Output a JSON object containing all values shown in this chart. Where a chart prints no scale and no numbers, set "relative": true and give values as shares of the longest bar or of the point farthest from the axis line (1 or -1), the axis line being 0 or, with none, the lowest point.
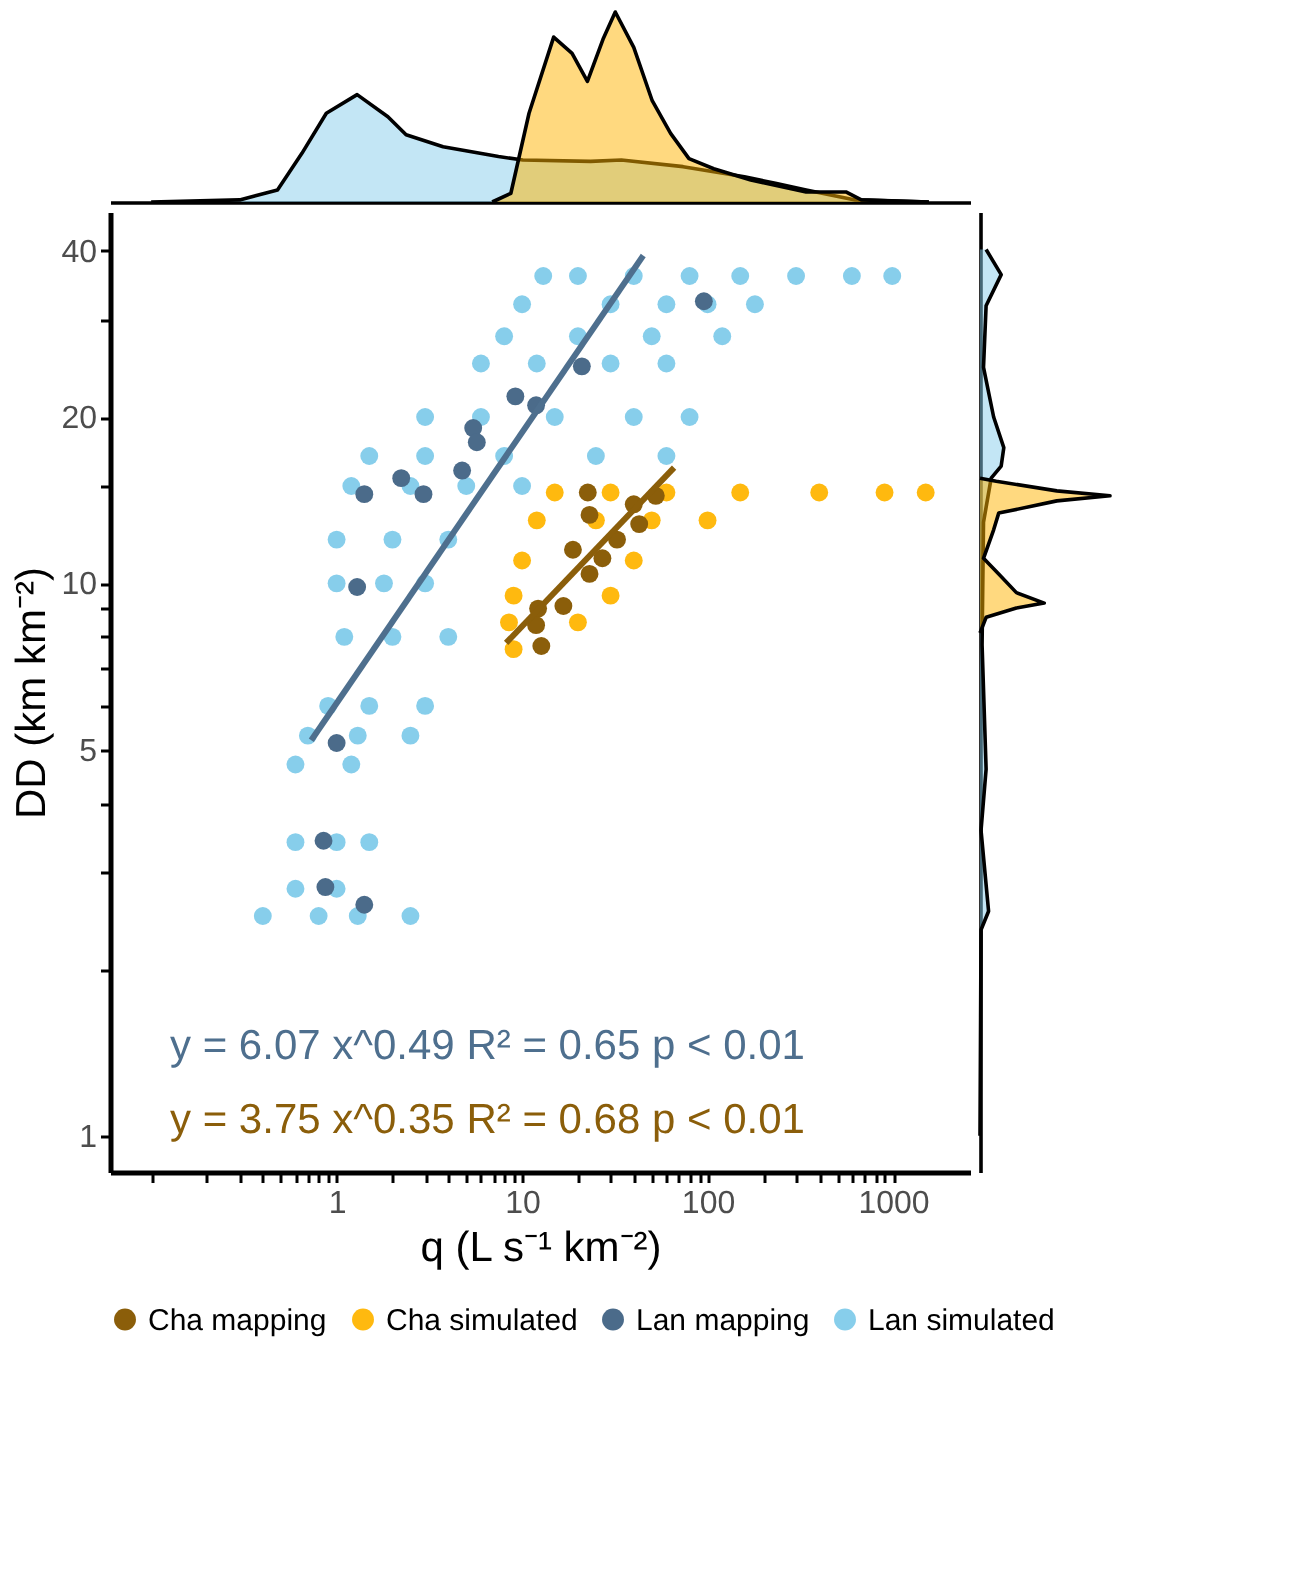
{
  "chart_data": [
    {
      "type": "area",
      "relative": true,
      "log": "x",
      "xlim": [
        0.06,
        2600
      ],
      "tick_labels": false,
      "series": [
        {
          "color": "#87ceeb",
          "x": [
            0.1,
            0.3,
            0.48,
            0.65,
            0.88,
            1.29,
            1.89,
            2.37,
            3.75,
            7.46,
            10.1,
            23.4,
            34.3,
            73.8,
            158,
            232,
            340,
            625,
            1560
          ],
          "values": [
            0,
            0.011,
            0.063,
            0.256,
            0.467,
            0.565,
            0.449,
            0.354,
            0.291,
            0.239,
            0.221,
            0.214,
            0.221,
            0.186,
            0.133,
            0.098,
            0.063,
            0.011,
            0
          ]
        },
        {
          "color": "#ffb400",
          "x": [
            6.9,
            8.7,
            10.9,
            14.8,
            18.6,
            22.5,
            27.3,
            31.8,
            40,
            50.3,
            63.2,
            79.4,
            108,
            171,
            340,
            557,
            675,
            1560
          ],
          "values": [
            0,
            0.046,
            0.467,
            0.868,
            0.782,
            0.635,
            0.856,
            1,
            0.814,
            0.533,
            0.361,
            0.228,
            0.175,
            0.116,
            0.053,
            0.053,
            0.011,
            0
          ]
        }
      ]
    },
    {
      "type": "scatter",
      "xlabel": "q (L s⁻¹ km⁻²)",
      "ylabel": "DD (km km⁻²)",
      "log": "xy",
      "xlim": [
        0.06,
        2600
      ],
      "ylim": [
        0.86,
        47
      ],
      "xticks": [
        {
          "value": 0.1,
          "label": null
        },
        {
          "value": 0.2,
          "label": null
        },
        {
          "value": 0.3,
          "label": null
        },
        {
          "value": 0.4,
          "label": null
        },
        {
          "value": 0.5,
          "label": null
        },
        {
          "value": 0.6,
          "label": null
        },
        {
          "value": 0.7,
          "label": null
        },
        {
          "value": 0.8,
          "label": null
        },
        {
          "value": 0.9,
          "label": null
        },
        1,
        {
          "value": 2,
          "label": null
        },
        {
          "value": 3,
          "label": null
        },
        {
          "value": 4,
          "label": null
        },
        {
          "value": 5,
          "label": null
        },
        {
          "value": 6,
          "label": null
        },
        {
          "value": 7,
          "label": null
        },
        {
          "value": 8,
          "label": null
        },
        {
          "value": 9,
          "label": null
        },
        10,
        {
          "value": 20,
          "label": null
        },
        {
          "value": 30,
          "label": null
        },
        {
          "value": 40,
          "label": null
        },
        {
          "value": 50,
          "label": null
        },
        {
          "value": 60,
          "label": null
        },
        {
          "value": 70,
          "label": null
        },
        {
          "value": 80,
          "label": null
        },
        {
          "value": 90,
          "label": null
        },
        100,
        {
          "value": 200,
          "label": null
        },
        {
          "value": 300,
          "label": null
        },
        {
          "value": 400,
          "label": null
        },
        {
          "value": 500,
          "label": null
        },
        {
          "value": 600,
          "label": null
        },
        {
          "value": 700,
          "label": null
        },
        {
          "value": 800,
          "label": null
        },
        {
          "value": 900,
          "label": null
        },
        1000
      ],
      "yticks": [
        1,
        {
          "value": 2,
          "label": null
        },
        {
          "value": 3,
          "label": null
        },
        {
          "value": 4,
          "label": null
        },
        5,
        {
          "value": 6,
          "label": null
        },
        {
          "value": 7,
          "label": null
        },
        {
          "value": 8,
          "label": null
        },
        {
          "value": 9,
          "label": null
        },
        10,
        {
          "value": 15,
          "label": null
        },
        20,
        {
          "value": 30,
          "label": null
        },
        40
      ],
      "legend": "bottom",
      "marker": "circle",
      "series": [
        {
          "name": "Cha mapping",
          "color": "#8b5e0a",
          "x": [
            22.6,
            52.6,
            40,
            23.1,
            42.8,
            32.5,
            18.8,
            27.1,
            23.1,
            16.7,
            12.2,
            11.9,
            12.7
          ],
          "values": [
            14.6,
            14.4,
            13.9,
            13.3,
            12.8,
            12.0,
            11.5,
            11.1,
            10.4,
            9.1,
            9.0,
            8.4,
            7.7
          ]
        },
        {
          "name": "Cha simulated",
          "color": "#ffb90f",
          "x": [
            15,
            30,
            60,
            150,
            400,
            900,
            1500,
            12,
            25,
            50,
            100,
            10,
            40,
            9,
            30,
            8.5,
            20,
            9
          ],
          "values": [
            14.6,
            14.6,
            14.6,
            14.6,
            14.6,
            14.6,
            14.6,
            13,
            13,
            13,
            13,
            11,
            11,
            9.5,
            9.5,
            8.5,
            8.5,
            7.6
          ]
        },
        {
          "name": "Lan mapping",
          "color": "#4b6b8a",
          "x": [
            95.5,
            21,
            9.2,
            11.9,
            5.45,
            5.7,
            4.75,
            2.23,
            1.41,
            2.94,
            1.29,
            1.0,
            0.85,
            0.87,
            1.41
          ],
          "values": [
            32.4,
            24.7,
            21.8,
            21.0,
            19.1,
            18.0,
            16.0,
            15.5,
            14.5,
            14.5,
            9.85,
            5.14,
            3.42,
            2.82,
            2.62
          ]
        },
        {
          "name": "Lan simulated",
          "color": "#87ceeb",
          "x": [
            13,
            20,
            40,
            80,
            150,
            300,
            600,
            990,
            10,
            30,
            60,
            100,
            180,
            8,
            20,
            50,
            120,
            6,
            12,
            30,
            60,
            3,
            6,
            15,
            40,
            80,
            1.5,
            3,
            8,
            25,
            60,
            1.2,
            2.5,
            5,
            10,
            1.0,
            2,
            4,
            1.0,
            1.8,
            3,
            1.1,
            2,
            4,
            0.9,
            1.5,
            3,
            0.7,
            1.3,
            2.5,
            0.6,
            1.2,
            0.6,
            1.0,
            1.5,
            0.6,
            1.0,
            0.4,
            0.8,
            1.3,
            2.5
          ],
          "values": [
            36,
            36,
            36,
            36,
            36,
            36,
            36,
            36,
            32,
            32,
            32,
            32,
            32,
            28,
            28,
            28,
            28,
            25,
            25,
            25,
            25,
            20,
            20,
            20,
            20,
            20,
            17,
            17,
            17,
            17,
            17,
            15,
            15,
            15,
            15,
            12,
            12,
            12,
            10,
            10,
            10,
            8,
            8,
            8,
            6,
            6,
            6,
            5.3,
            5.3,
            5.3,
            4.7,
            4.7,
            3.4,
            3.4,
            3.4,
            2.8,
            2.8,
            2.5,
            2.5,
            2.5,
            2.5
          ]
        },
        {
          "type": "line",
          "marker": "none",
          "color": "#4e6f8e",
          "x": [
            0.73,
            45
          ],
          "values": [
            5.2,
            39.2
          ]
        },
        {
          "type": "line",
          "marker": "none",
          "color": "#8b5e0a",
          "x": [
            8.2,
            66
          ],
          "values": [
            7.8,
            16.2
          ]
        }
      ],
      "annotations": [
        "y = 6.07 x^0.49   R² = 0.65   p < 0.01",
        "y = 3.75 x^0.35   R² = 0.68   p < 0.01"
      ]
    },
    {
      "type": "area",
      "relative": true,
      "orientation": "horizontal",
      "log": "y",
      "ylim": [
        0.86,
        47
      ],
      "tick_labels": false,
      "series": [
        {
          "color": "#87ceeb",
          "x": [
            40.2,
            36.2,
            31.8,
            24.6,
            20.0,
            17.6,
            16.3,
            15.5,
            12.9,
            7.73,
            4.61,
            3.57,
            2.55,
            2.36,
            1.0
          ],
          "values": [
            0.047,
            0.163,
            0.047,
            0.027,
            0.105,
            0.183,
            0.163,
            0.086,
            0.027,
            0.016,
            0.047,
            0.008,
            0.066,
            0.008,
            0
          ]
        },
        {
          "color": "#ffb400",
          "x": [
            15.5,
            15.3,
            14.7,
            14.4,
            14.1,
            13.4,
            12.5,
            11.1,
            10.4,
            9.62,
            9.21,
            9.02,
            8.68,
            8.13
          ],
          "values": [
            0,
            0.125,
            0.591,
            1,
            0.591,
            0.144,
            0.105,
            0.027,
            0.144,
            0.28,
            0.494,
            0.28,
            0.047,
            0
          ]
        }
      ]
    }
  ]
}
